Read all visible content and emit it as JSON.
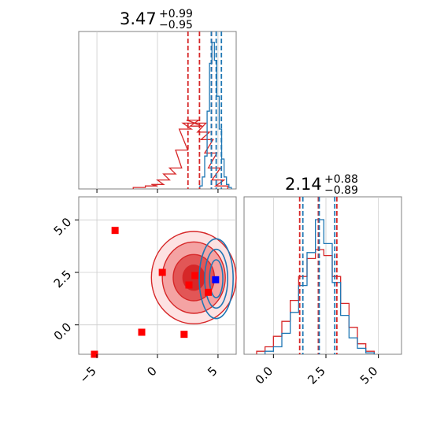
{
  "colors": {
    "red": "#d62728",
    "blue": "#1f77b4",
    "marker_red": "#ff0000",
    "marker_blue": "#0000ff",
    "grid": "#cccccc",
    "frame": "#808080"
  },
  "chart_data": [
    {
      "panel": "marginal-param-1",
      "type": "area",
      "title": {
        "median": "3.47",
        "plus": "+0.99",
        "minus": "−0.95"
      },
      "xlim": [
        -6.5,
        6.5
      ],
      "grid": true,
      "series": [
        {
          "color": "red",
          "kind": "histogram",
          "x": [
            -1.5,
            -0.5,
            0.0,
            0.5,
            1.0,
            1.5,
            2.0,
            2.3,
            2.6,
            2.9,
            3.2,
            3.5,
            3.8,
            4.1,
            4.4,
            4.7,
            5.0,
            5.3
          ],
          "y": [
            0.01,
            0.02,
            0.03,
            0.06,
            0.1,
            0.14,
            0.26,
            0.4,
            0.44,
            0.46,
            0.42,
            0.44,
            0.38,
            0.33,
            0.24,
            0.14,
            0.06,
            0.02
          ],
          "quantiles": [
            2.52,
            3.47,
            4.46
          ]
        },
        {
          "color": "blue",
          "kind": "histogram",
          "x": [
            3.6,
            3.8,
            4.0,
            4.2,
            4.4,
            4.6,
            4.8,
            5.0,
            5.2,
            5.4,
            5.6,
            5.8,
            6.0
          ],
          "y": [
            0.02,
            0.08,
            0.22,
            0.52,
            0.84,
            0.98,
            0.86,
            0.62,
            0.4,
            0.2,
            0.08,
            0.03,
            0.01
          ],
          "quantiles": [
            4.45,
            4.85,
            5.28
          ]
        }
      ]
    },
    {
      "panel": "joint-scatter",
      "type": "scatter",
      "xlim": [
        -6.5,
        6.5
      ],
      "ylim": [
        -1.4,
        6.1
      ],
      "xticks": [
        "−5",
        "0",
        "5"
      ],
      "xtick_values": [
        -5,
        0,
        5
      ],
      "yticks": [
        "0.0",
        "2.5",
        "5.0"
      ],
      "ytick_values": [
        0,
        2.5,
        5
      ],
      "grid": true,
      "red_markers": [
        [
          -3.5,
          4.5
        ],
        [
          -1.3,
          -0.35
        ],
        [
          0.4,
          2.5
        ],
        [
          2.2,
          -0.45
        ],
        [
          2.6,
          1.9
        ],
        [
          3.1,
          2.35
        ],
        [
          4.2,
          1.55
        ],
        [
          -5.2,
          -1.4
        ]
      ],
      "blue_markers": [
        [
          4.8,
          2.15
        ]
      ],
      "red_contours": {
        "center": [
          3.0,
          2.25
        ],
        "radii": [
          [
            3.5,
            2.2
          ],
          [
            2.6,
            1.7
          ],
          [
            1.7,
            1.1
          ],
          [
            0.9,
            0.6
          ]
        ]
      },
      "blue_contours": {
        "center": [
          4.85,
          2.2
        ],
        "radii": [
          [
            1.4,
            1.9
          ],
          [
            0.95,
            1.4
          ],
          [
            0.55,
            0.9
          ]
        ]
      }
    },
    {
      "panel": "marginal-param-2",
      "type": "area",
      "title": {
        "median": "2.14",
        "plus": "+0.88",
        "minus": "−0.89"
      },
      "xlim": [
        -1.4,
        6.1
      ],
      "xticks": [
        "0.0",
        "2.5",
        "5.0"
      ],
      "xtick_values": [
        0,
        2.5,
        5
      ],
      "grid": true,
      "series": [
        {
          "color": "red",
          "kind": "histogram",
          "x": [
            -0.6,
            -0.2,
            0.2,
            0.6,
            1.0,
            1.4,
            1.8,
            2.2,
            2.6,
            3.0,
            3.4,
            3.8,
            4.2,
            4.6
          ],
          "y": [
            0.02,
            0.05,
            0.12,
            0.22,
            0.36,
            0.52,
            0.64,
            0.7,
            0.66,
            0.52,
            0.34,
            0.18,
            0.07,
            0.02
          ],
          "quantiles": [
            1.25,
            2.14,
            3.02
          ]
        },
        {
          "color": "blue",
          "kind": "histogram",
          "x": [
            -0.2,
            0.2,
            0.6,
            1.0,
            1.4,
            1.8,
            2.2,
            2.6,
            3.0,
            3.4,
            3.8,
            4.2,
            4.6
          ],
          "y": [
            0.02,
            0.05,
            0.14,
            0.28,
            0.46,
            0.68,
            0.9,
            0.74,
            0.48,
            0.26,
            0.11,
            0.04,
            0.01
          ],
          "quantiles": [
            1.4,
            2.18,
            2.92
          ]
        }
      ]
    }
  ]
}
